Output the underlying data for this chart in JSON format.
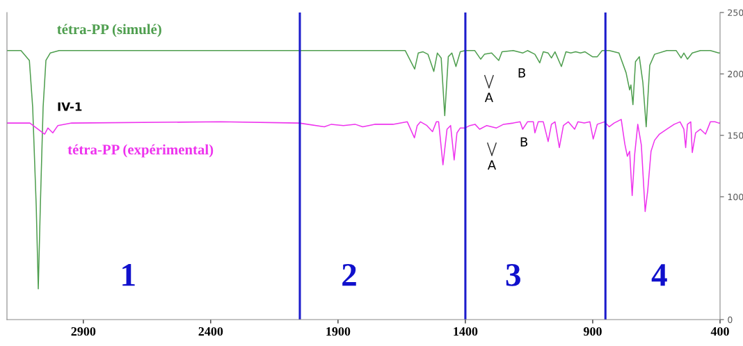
{
  "chart_data": {
    "type": "line",
    "xlim": [
      3200,
      400
    ],
    "xticks": [
      2900,
      2400,
      1900,
      1400,
      900,
      400
    ],
    "ylim": [
      0,
      250
    ],
    "yticks": [
      0,
      100,
      150,
      200,
      250
    ],
    "grid": false,
    "legend": false,
    "marker": "none",
    "line_style": "solid",
    "series": [
      {
        "name": "tétra-PP (simulé)",
        "color": "#4e9e4e",
        "x": [
          3200,
          3145,
          3112,
          3099,
          3085,
          3077,
          3069,
          3058,
          3047,
          3030,
          2995,
          2940,
          1636,
          1599,
          1585,
          1566,
          1547,
          1524,
          1510,
          1495,
          1481,
          1467,
          1453,
          1437,
          1420,
          1401,
          1363,
          1340,
          1325,
          1297,
          1269,
          1256,
          1212,
          1175,
          1156,
          1127,
          1108,
          1094,
          1075,
          1062,
          1048,
          1023,
          1005,
          986,
          967,
          948,
          930,
          901,
          882,
          863,
          835,
          797,
          769,
          755,
          750,
          742,
          732,
          717,
          703,
          690,
          676,
          657,
          609,
          572,
          553,
          542,
          528,
          509,
          477,
          438,
          405,
          400
        ],
        "values": [
          219,
          219,
          211,
          173,
          92,
          25,
          92,
          173,
          211,
          217,
          219,
          219,
          219,
          204,
          217,
          218,
          216,
          202,
          217,
          213,
          166,
          214,
          217,
          206,
          218,
          219,
          219,
          212,
          216,
          217,
          211,
          218,
          219,
          217,
          219,
          216,
          209,
          218,
          217,
          213,
          218,
          206,
          218,
          217,
          218,
          217,
          218,
          214,
          214,
          219,
          219,
          217,
          201,
          187,
          191,
          175,
          210,
          214,
          193,
          157,
          207,
          216,
          219,
          219,
          213,
          217,
          212,
          217,
          219,
          219,
          217,
          217
        ]
      },
      {
        "name": "tétra-PP (expérimental)",
        "color": "#ee33ee",
        "x": [
          3200,
          3150,
          3110,
          3052,
          3039,
          3020,
          3000,
          2946,
          2360,
          2052,
          1954,
          1926,
          1879,
          1833,
          1803,
          1756,
          1684,
          1628,
          1600,
          1589,
          1576,
          1551,
          1529,
          1514,
          1505,
          1488,
          1472,
          1458,
          1444,
          1433,
          1420,
          1401,
          1382,
          1362,
          1344,
          1316,
          1278,
          1250,
          1212,
          1185,
          1175,
          1156,
          1133,
          1127,
          1114,
          1094,
          1075,
          1062,
          1048,
          1031,
          1015,
          996,
          971,
          958,
          933,
          911,
          898,
          882,
          854,
          835,
          816,
          788,
          774,
          764,
          755,
          745,
          735,
          723,
          709,
          694,
          684,
          671,
          657,
          638,
          609,
          580,
          557,
          542,
          535,
          528,
          515,
          509,
          496,
          477,
          457,
          438,
          420,
          405,
          400
        ],
        "values": [
          160,
          160,
          160,
          151,
          156,
          152,
          158,
          160,
          161,
          160,
          157,
          159,
          158,
          159,
          157,
          159,
          159,
          161,
          148,
          158,
          161,
          158,
          153,
          161,
          161,
          126,
          155,
          158,
          130,
          152,
          156,
          156,
          158,
          159,
          155,
          158,
          156,
          159,
          160,
          161,
          155,
          161,
          161,
          152,
          161,
          161,
          145,
          159,
          161,
          140,
          158,
          161,
          155,
          161,
          160,
          161,
          147,
          159,
          161,
          157,
          160,
          163,
          143,
          133,
          137,
          101,
          135,
          159,
          142,
          88,
          105,
          137,
          146,
          151,
          155,
          159,
          161,
          155,
          140,
          159,
          161,
          136,
          152,
          155,
          151,
          161,
          161,
          160,
          160
        ]
      }
    ],
    "ref_lines": [
      {
        "axis": "x",
        "value": 2050,
        "color": "#1c1ccc"
      },
      {
        "axis": "x",
        "value": 1400,
        "color": "#1c1ccc"
      },
      {
        "axis": "x",
        "value": 850,
        "color": "#1c1ccc"
      }
    ],
    "annotations": [
      "IV-1",
      "A",
      "B",
      "A",
      "B",
      "1",
      "2",
      "3",
      "4"
    ]
  }
}
